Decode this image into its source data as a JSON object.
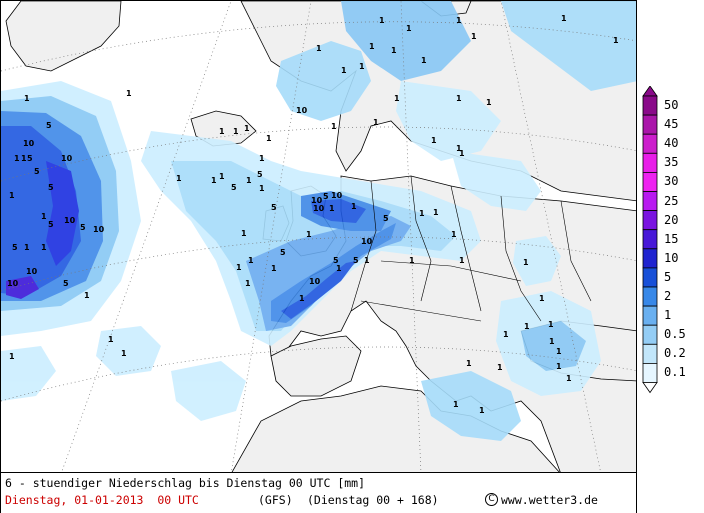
{
  "map": {
    "contour_labels": [
      "1",
      "1",
      "1",
      "1",
      "1",
      "1",
      "1",
      "1",
      "1",
      "1",
      "1",
      "1",
      "1",
      "1",
      "1",
      "1",
      "1",
      "1",
      "1",
      "1",
      "1",
      "1",
      "1",
      "1",
      "1",
      "1",
      "1",
      "1",
      "1",
      "1",
      "1",
      "1",
      "1",
      "1",
      "1",
      "1",
      "1",
      "1",
      "1",
      "1",
      "1",
      "1",
      "1",
      "1",
      "1",
      "1",
      "1",
      "1",
      "1",
      "1",
      "1",
      "1",
      "1",
      "1",
      "1",
      "1",
      "1",
      "1",
      "1",
      "1",
      "1",
      "1",
      "1",
      "1",
      "1",
      "1",
      "1",
      "1",
      "1",
      "1",
      "1",
      "5",
      "5",
      "5",
      "5",
      "5",
      "5",
      "5",
      "5",
      "5",
      "5",
      "5",
      "5",
      "5",
      "5",
      "5",
      "5",
      "10",
      "10",
      "10",
      "10",
      "10",
      "10",
      "10",
      "10",
      "10",
      "10",
      "10",
      "10"
    ],
    "colors": {
      "background": "#ffffff",
      "land": "#f0f0f0",
      "sea_outside": "#ffffff",
      "p01": "#cceeff",
      "p02": "#a6dcfa",
      "p05": "#88c8f5",
      "p1": "#6aabf0",
      "p2": "#3f89e8",
      "p5": "#1f58e0",
      "p10": "#1a2ee0",
      "p15": "#3a16d8",
      "coast": "#000000",
      "grid": "#777777"
    }
  },
  "legend": {
    "labels": [
      "50",
      "45",
      "40",
      "35",
      "30",
      "25",
      "20",
      "15",
      "10",
      "5",
      "2",
      "1",
      "0.5",
      "0.2",
      "0.1"
    ],
    "colors": [
      "#8a0a8a",
      "#aa16aa",
      "#cc1ecc",
      "#e81ee8",
      "#ee22f0",
      "#b81af0",
      "#7a14e0",
      "#4818d8",
      "#2024d0",
      "#1850d8",
      "#3888e8",
      "#6ab0f0",
      "#94cdf5",
      "#c2e6fa",
      "#e6f6ff"
    ]
  },
  "footer": {
    "title": "6 - stuendiger Niederschlag bis Dienstag 00 UTC [mm]",
    "date": "Dienstag, 01-01-2013  00 UTC",
    "model": "(GFS)",
    "run": "(Dienstag 00 + 168)",
    "copyright_symbol": "C",
    "source": "www.wetter3.de"
  }
}
